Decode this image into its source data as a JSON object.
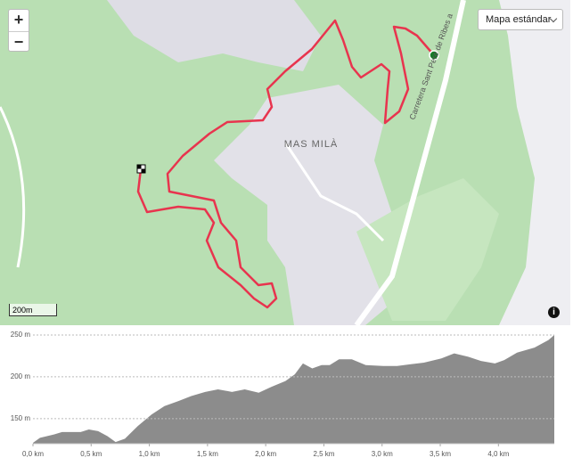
{
  "map": {
    "zoom_in": "+",
    "zoom_out": "−",
    "layer_button": "Mapa estándar",
    "place_label": "MAS MILÀ",
    "road_label": "Carretera Sant Pere de Ribes a",
    "scale": "200m",
    "info": "i"
  },
  "chart_data": {
    "type": "area",
    "color": "#8c8c8c",
    "grid": true,
    "x": [
      0.0,
      0.06,
      0.18,
      0.25,
      0.41,
      0.48,
      0.56,
      0.64,
      0.71,
      0.79,
      0.9,
      1.02,
      1.13,
      1.25,
      1.36,
      1.48,
      1.59,
      1.71,
      1.82,
      1.94,
      2.05,
      2.17,
      2.25,
      2.32,
      2.4,
      2.48,
      2.55,
      2.63,
      2.74,
      2.86,
      3.01,
      3.13,
      3.24,
      3.36,
      3.51,
      3.62,
      3.74,
      3.85,
      3.97,
      4.05,
      4.16,
      4.31,
      4.43,
      4.48
    ],
    "values": [
      121,
      127,
      131,
      134,
      134,
      137,
      135,
      129,
      122,
      126,
      141,
      155,
      165,
      171,
      177,
      182,
      185,
      182,
      185,
      181,
      188,
      195,
      203,
      216,
      210,
      214,
      214,
      221,
      221,
      214,
      213,
      213,
      215,
      217,
      222,
      228,
      224,
      219,
      216,
      220,
      229,
      235,
      244,
      250
    ],
    "xlim": [
      0,
      4.48
    ],
    "ylim": [
      120,
      250
    ],
    "xticks": [
      {
        "value": 0,
        "label": "0,0 km"
      },
      {
        "value": 0.5,
        "label": "0,5 km"
      },
      {
        "value": 1,
        "label": "1,0 km"
      },
      {
        "value": 1.5,
        "label": "1,5 km"
      },
      {
        "value": 2,
        "label": "2,0 km"
      },
      {
        "value": 2.5,
        "label": "2,5 km"
      },
      {
        "value": 3,
        "label": "3,0 km"
      },
      {
        "value": 3.5,
        "label": "3,5 km"
      },
      {
        "value": 4,
        "label": "4,0 km"
      }
    ],
    "yticks": [
      {
        "value": 150,
        "label": "150 m"
      },
      {
        "value": 200,
        "label": "200 m"
      },
      {
        "value": 250,
        "label": "250 m"
      }
    ]
  }
}
